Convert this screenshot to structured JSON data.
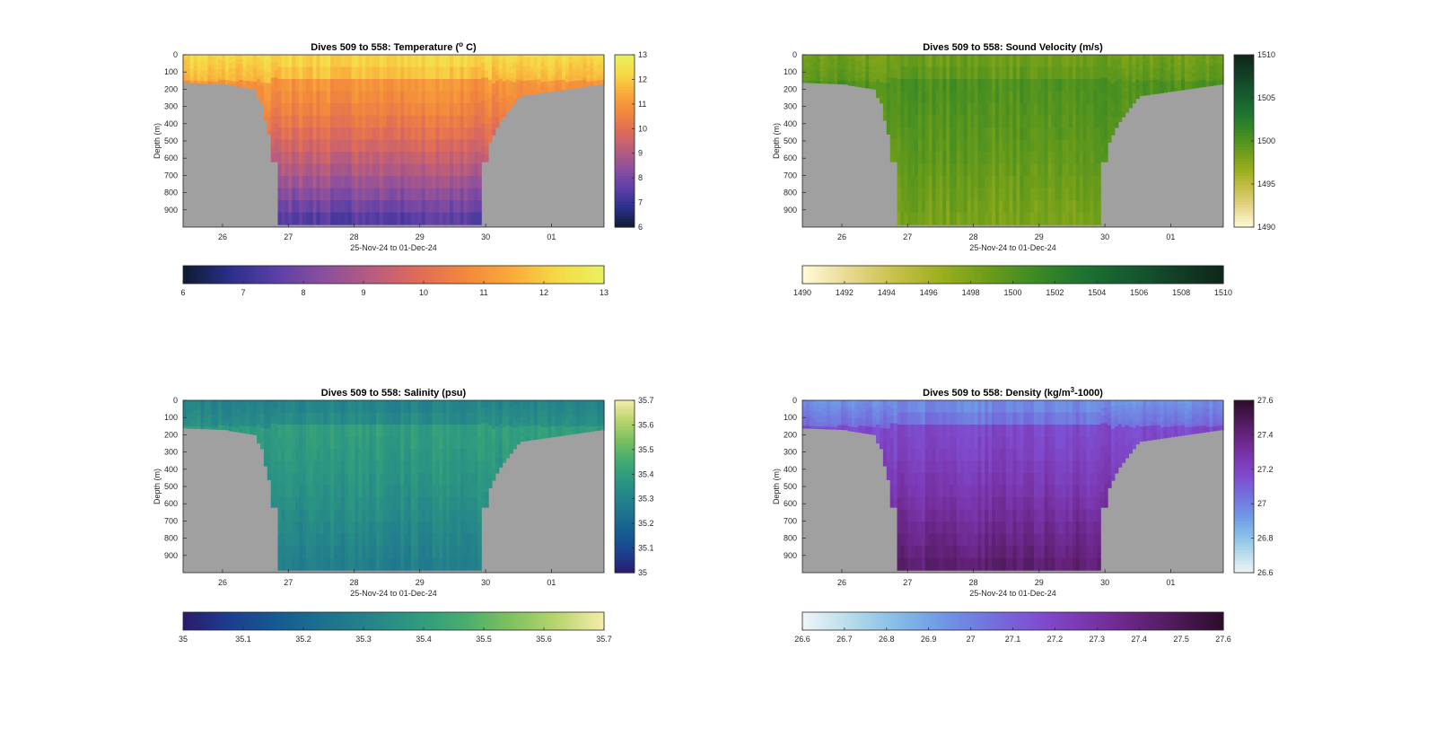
{
  "figure": {
    "panels": [
      {
        "id": "temperature",
        "title_prefix": "Dives 509 to 558: Temperature (",
        "title_sup": "o",
        "title_suffix": " C)",
        "colormap": [
          "#0d1b2e",
          "#2a2f8a",
          "#5b3fa6",
          "#8a4f9f",
          "#b65c7f",
          "#de6b5a",
          "#f2873d",
          "#f9a93a",
          "#f6d946",
          "#e8f15e"
        ],
        "colorbar_right": {
          "min": 6,
          "max": 13,
          "ticks": [
            "6",
            "7",
            "8",
            "9",
            "10",
            "11",
            "12",
            "13"
          ]
        },
        "colorbar_bottom": {
          "min": 6,
          "max": 13,
          "ticks": [
            "6",
            "7",
            "8",
            "9",
            "10",
            "11",
            "12",
            "13"
          ]
        }
      },
      {
        "id": "sound-velocity",
        "title_prefix": "Dives 509 to 558: Sound Velocity (m/s)",
        "title_sup": "",
        "title_suffix": "",
        "colormap": [
          "#fffbd9",
          "#e8d88f",
          "#c7c04a",
          "#9aae1c",
          "#6a9c1a",
          "#3b8a24",
          "#1d7331",
          "#155a30",
          "#123f26",
          "#0f2619"
        ],
        "colorbar_right": {
          "min": 1490,
          "max": 1510,
          "ticks": [
            "1490",
            "1495",
            "1500",
            "1505",
            "1510"
          ]
        },
        "colorbar_bottom": {
          "min": 1490,
          "max": 1510,
          "ticks": [
            "1490",
            "1492",
            "1494",
            "1496",
            "1498",
            "1500",
            "1502",
            "1504",
            "1506",
            "1508",
            "1510"
          ]
        }
      },
      {
        "id": "salinity",
        "title_prefix": "Dives 509 to 558: Salinity (psu)",
        "title_sup": "",
        "title_suffix": "",
        "colormap": [
          "#2a1a6e",
          "#1d3e8f",
          "#155a92",
          "#1d718f",
          "#25848a",
          "#2e9a80",
          "#48ad6f",
          "#7ec15f",
          "#b9d56e",
          "#f6edaa"
        ],
        "colorbar_right": {
          "min": 35,
          "max": 35.7,
          "ticks": [
            "35",
            "35.1",
            "35.2",
            "35.3",
            "35.4",
            "35.5",
            "35.6",
            "35.7"
          ]
        },
        "colorbar_bottom": {
          "min": 35,
          "max": 35.7,
          "ticks": [
            "35",
            "35.1",
            "35.2",
            "35.3",
            "35.4",
            "35.5",
            "35.6",
            "35.7"
          ]
        }
      },
      {
        "id": "density",
        "title_prefix": "Dives 509 to 558: Density (kg/m",
        "title_sup": "3",
        "title_suffix": "-1000)",
        "colormap": [
          "#f0f5f7",
          "#b8dcea",
          "#86bde8",
          "#6f98e6",
          "#7372dd",
          "#7f4ed2",
          "#7b38b0",
          "#6a2686",
          "#4d1a58",
          "#2e0d2c"
        ],
        "colorbar_right": {
          "min": 26.6,
          "max": 27.6,
          "ticks": [
            "26.6",
            "26.8",
            "27",
            "27.2",
            "27.4",
            "27.6"
          ]
        },
        "colorbar_bottom": {
          "min": 26.6,
          "max": 27.6,
          "ticks": [
            "26.6",
            "26.7",
            "26.8",
            "26.9",
            "27",
            "27.1",
            "27.2",
            "27.3",
            "27.4",
            "27.5",
            "27.6"
          ]
        }
      }
    ]
  },
  "chart_data": [
    {
      "type": "heatmap",
      "title": "Dives 509 to 558: Temperature (o C)",
      "xlabel": "25-Nov-24 to 01-Dec-24",
      "ylabel": "Depth (m)",
      "x_ticks": [
        "26",
        "27",
        "28",
        "29",
        "30",
        "01"
      ],
      "y_ticks": [
        "0",
        "100",
        "200",
        "300",
        "400",
        "500",
        "600",
        "700",
        "800",
        "900"
      ],
      "ylim": [
        0,
        1000
      ],
      "grid": false,
      "color_range": [
        6,
        13
      ],
      "surface_value": 12.3,
      "mid_value": 11.0,
      "deep_value": 7.2,
      "no_data_color": "#a0a0a0"
    },
    {
      "type": "heatmap",
      "title": "Dives 509 to 558: Sound Velocity (m/s)",
      "xlabel": "25-Nov-24 to 01-Dec-24",
      "ylabel": "Depth (m)",
      "x_ticks": [
        "26",
        "27",
        "28",
        "29",
        "30",
        "01"
      ],
      "y_ticks": [
        "0",
        "100",
        "200",
        "300",
        "400",
        "500",
        "600",
        "700",
        "800",
        "900"
      ],
      "ylim": [
        0,
        1000
      ],
      "grid": false,
      "color_range": [
        1490,
        1510
      ],
      "surface_value": 1498.5,
      "mid_value": 1500.2,
      "deep_value": 1498.0,
      "no_data_color": "#a0a0a0"
    },
    {
      "type": "heatmap",
      "title": "Dives 509 to 558: Salinity (psu)",
      "xlabel": "25-Nov-24 to 01-Dec-24",
      "ylabel": "Depth (m)",
      "x_ticks": [
        "26",
        "27",
        "28",
        "29",
        "30",
        "01"
      ],
      "y_ticks": [
        "0",
        "100",
        "200",
        "300",
        "400",
        "500",
        "600",
        "700",
        "800",
        "900"
      ],
      "ylim": [
        0,
        1000
      ],
      "grid": false,
      "color_range": [
        35,
        35.7
      ],
      "surface_value": 35.3,
      "mid_value": 35.4,
      "deep_value": 35.28,
      "no_data_color": "#a0a0a0"
    },
    {
      "type": "heatmap",
      "title": "Dives 509 to 558: Density (kg/m3-1000)",
      "xlabel": "25-Nov-24 to 01-Dec-24",
      "ylabel": "Depth (m)",
      "x_ticks": [
        "26",
        "27",
        "28",
        "29",
        "30",
        "01"
      ],
      "y_ticks": [
        "0",
        "100",
        "200",
        "300",
        "400",
        "500",
        "600",
        "700",
        "800",
        "900"
      ],
      "ylim": [
        0,
        1000
      ],
      "grid": false,
      "color_range": [
        26.6,
        27.6
      ],
      "surface_value": 26.95,
      "mid_value": 27.18,
      "deep_value": 27.45,
      "no_data_color": "#a0a0a0"
    }
  ]
}
